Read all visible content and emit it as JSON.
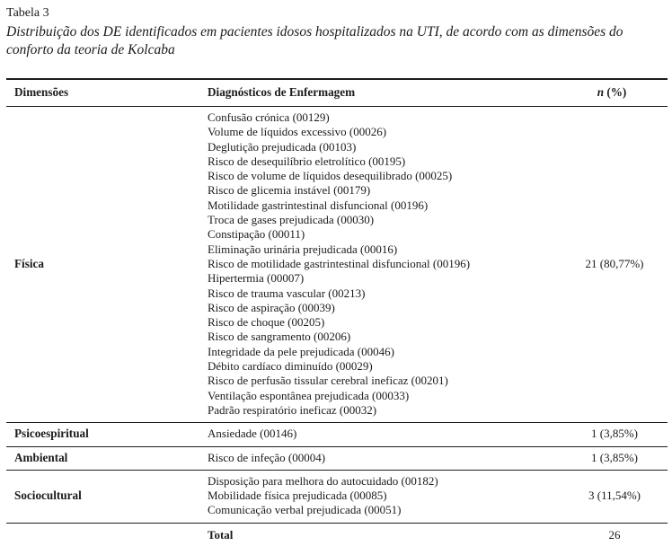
{
  "title": "Tabela 3",
  "caption": "Distribuição dos DE identificados em pacientes idosos hospitalizados na UTI, de acordo com as dimensões do conforto da teoria de Kolcaba",
  "colors": {
    "background": "#ffffff",
    "text": "#1b1b1b",
    "rule": "#1c1c1c"
  },
  "table": {
    "headers": {
      "dimensions": "Dimensões",
      "diagnoses": "Diagnósticos de Enfermagem",
      "n_italic": "n",
      "n_rest": " (%)"
    },
    "sections": [
      {
        "dimension": "Física",
        "diagnoses": [
          "Confusão crónica (00129)",
          "Volume de líquidos excessivo (00026)",
          "Deglutição prejudicada (00103)",
          "Risco de desequilíbrio eletrolítico (00195)",
          "Risco de volume de líquidos desequilibrado (00025)",
          "Risco de glicemia instável (00179)",
          "Motilidade gastrintestinal disfuncional (00196)",
          "Troca de gases prejudicada (00030)",
          "Constipação (00011)",
          "Eliminação urinária prejudicada (00016)",
          "Risco de motilidade gastrintestinal disfuncional (00196)",
          "Hipertermia (00007)",
          "Risco de trauma vascular (00213)",
          "Risco de aspiração (00039)",
          "Risco de choque (00205)",
          "Risco de sangramento (00206)",
          "Integridade da pele prejudicada (00046)",
          "Débito cardíaco diminuído (00029)",
          "Risco de perfusão tissular cerebral ineficaz (00201)",
          "Ventilação espontânea prejudicada (00033)",
          "Padrão respiratório ineficaz (00032)"
        ],
        "n_percent": "21 (80,77%)"
      },
      {
        "dimension": "Psicoespiritual",
        "diagnoses": [
          "Ansiedade (00146)"
        ],
        "n_percent": "1 (3,85%)"
      },
      {
        "dimension": "Ambiental",
        "diagnoses": [
          "Risco de infeção (00004)"
        ],
        "n_percent": "1 (3,85%)"
      },
      {
        "dimension": "Sociocultural",
        "diagnoses": [
          "Disposição para melhora do autocuidado (00182)",
          "Mobilidade física prejudicada (00085)",
          "Comunicação verbal prejudicada (00051)"
        ],
        "n_percent": "3 (11,54%)"
      }
    ],
    "total": {
      "label": "Total",
      "value": "26"
    }
  }
}
